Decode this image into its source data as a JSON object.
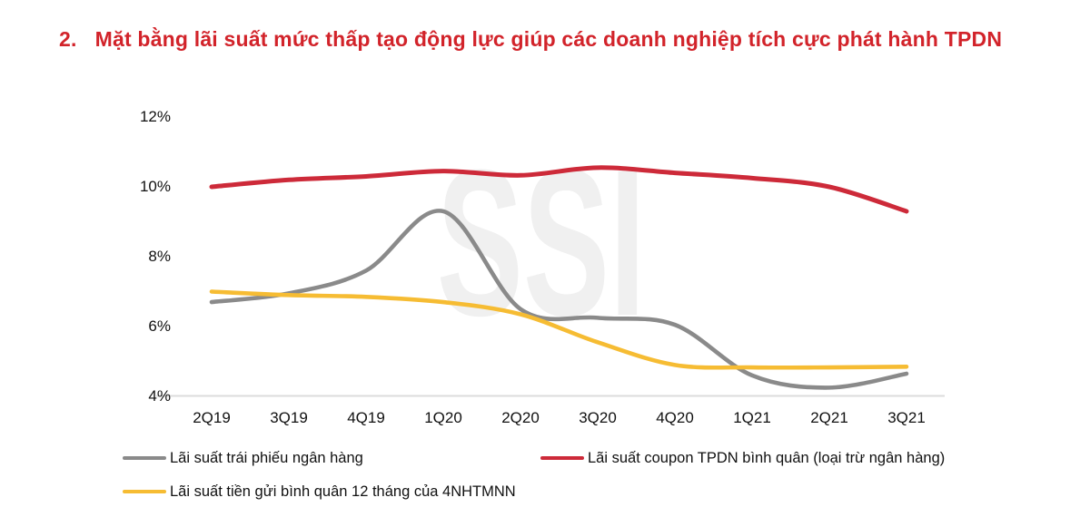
{
  "title": {
    "number": "2.",
    "text": "Mặt bằng lãi suất mức thấp tạo động lực giúp các doanh nghiệp tích cực phát hành TPDN"
  },
  "watermark": "SSI",
  "colors": {
    "title": "#d2232a",
    "axis_line": "#dcdcdc",
    "watermark": "#f0f0f0",
    "text": "#111111"
  },
  "chart_data": {
    "type": "line",
    "title": "",
    "xlabel": "",
    "ylabel": "",
    "categories": [
      "2Q19",
      "3Q19",
      "4Q19",
      "1Q20",
      "2Q20",
      "3Q20",
      "4Q20",
      "1Q21",
      "2Q21",
      "3Q21"
    ],
    "series": [
      {
        "name": "Lãi suất trái phiếu ngân hàng",
        "color": "#8a8a8a",
        "stroke_width": 4.6,
        "values": [
          6.7,
          6.95,
          7.6,
          9.3,
          6.5,
          6.25,
          6.05,
          4.6,
          4.25,
          4.65
        ]
      },
      {
        "name": "Lãi suất coupon TPDN bình quân (loại trừ ngân hàng)",
        "color": "#cd2a39",
        "stroke_width": 5,
        "values": [
          10.0,
          10.2,
          10.3,
          10.45,
          10.33,
          10.55,
          10.4,
          10.25,
          10.0,
          9.3
        ]
      },
      {
        "name": "Lãi suất tiền gửi bình quân 12 tháng của 4NHTMNN",
        "color": "#f6bc33",
        "stroke_width": 4.6,
        "values": [
          7.0,
          6.9,
          6.85,
          6.7,
          6.35,
          5.55,
          4.9,
          4.83,
          4.83,
          4.85
        ]
      }
    ],
    "ylim": [
      4,
      12
    ],
    "yticks": [
      "12%",
      "10%",
      "8%",
      "6%",
      "4%"
    ],
    "ytick_values": [
      12,
      10,
      8,
      6,
      4
    ],
    "grid": false,
    "legend_position": "bottom-left"
  }
}
